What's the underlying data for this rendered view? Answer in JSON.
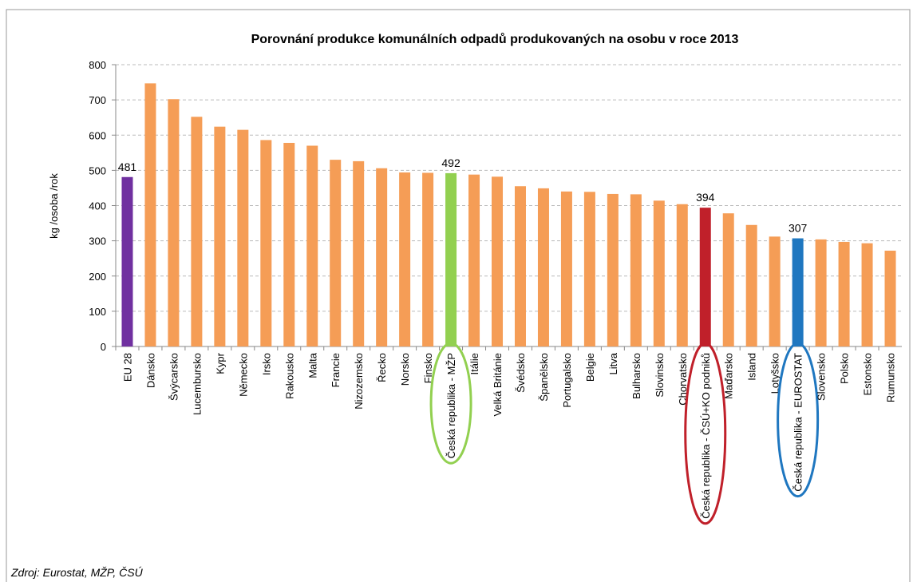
{
  "chart_data": {
    "type": "bar",
    "title": "Porovnání produkce komunálních odpadů produkovaných  na osobu v roce 2013",
    "y_label": "kg /osoba /rok",
    "source": "Zdroj: Eurostat, MŽP, ČSÚ",
    "categories": [
      "EU 28",
      "Dánsko",
      "Švýcarsko",
      "Lucembursko",
      "Kypr",
      "Německo",
      "Irsko",
      "Rakousko",
      "Malta",
      "Francie",
      "Nizozemsko",
      "Řecko",
      "Norsko",
      "Finsko",
      "Česká republika - MŽP",
      "Itálie",
      "Velká Británie",
      "Švédsko",
      "Španělsko",
      "Portugalsko",
      "Belgie",
      "Litva",
      "Bulharsko",
      "Slovinsko",
      "Chorvatsko",
      "Česká republika - ČSÚ+KO podniků",
      "Maďarsko",
      "Island",
      "Lotyšsko",
      "Česká republika - EUROSTAT",
      "Slovensko",
      "Polsko",
      "Estonsko",
      "Rumunsko"
    ],
    "values": [
      481,
      747,
      702,
      652,
      624,
      615,
      586,
      578,
      570,
      530,
      526,
      506,
      494,
      493,
      492,
      488,
      482,
      455,
      449,
      440,
      439,
      433,
      432,
      414,
      404,
      394,
      378,
      345,
      312,
      307,
      304,
      297,
      293,
      272
    ],
    "colors": [
      "#7030a0",
      "#f59d56",
      "#f59d56",
      "#f59d56",
      "#f59d56",
      "#f59d56",
      "#f59d56",
      "#f59d56",
      "#f59d56",
      "#f59d56",
      "#f59d56",
      "#f59d56",
      "#f59d56",
      "#f59d56",
      "#92d050",
      "#f59d56",
      "#f59d56",
      "#f59d56",
      "#f59d56",
      "#f59d56",
      "#f59d56",
      "#f59d56",
      "#f59d56",
      "#f59d56",
      "#f59d56",
      "#c0202a",
      "#f59d56",
      "#f59d56",
      "#f59d56",
      "#1f77c0",
      "#f59d56",
      "#f59d56",
      "#f59d56",
      "#f59d56"
    ],
    "labeled": [
      0,
      14,
      25,
      29
    ],
    "circled": [
      14,
      25,
      29
    ],
    "ylim": [
      0,
      800
    ],
    "yticks": [
      0,
      100,
      200,
      300,
      400,
      500,
      600,
      700,
      800
    ],
    "grid": true
  }
}
